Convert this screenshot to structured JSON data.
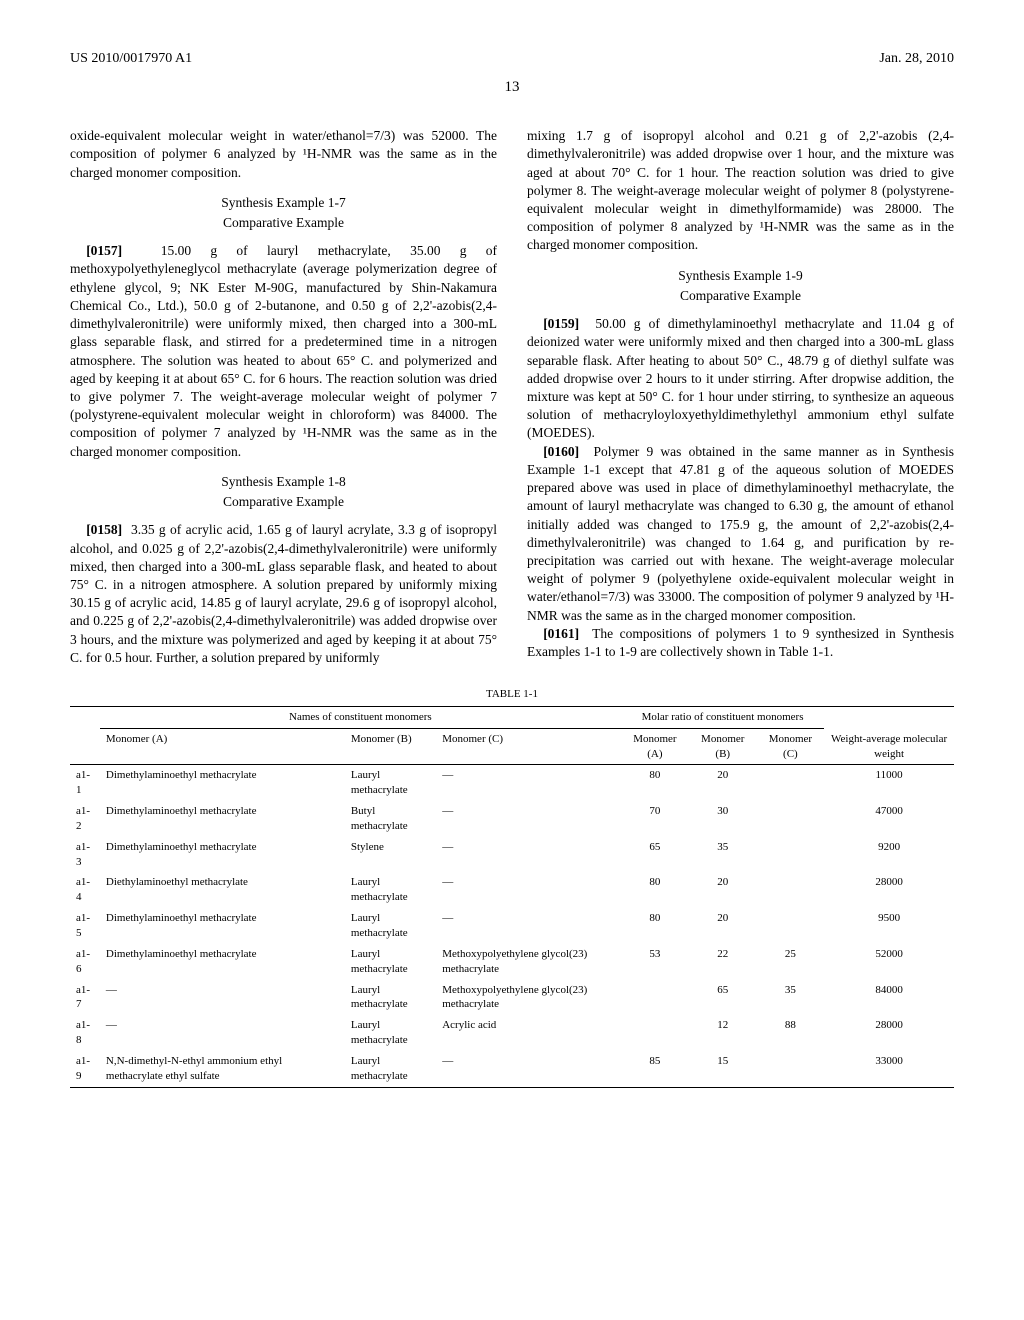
{
  "header": {
    "pub_number": "US 2010/0017970 A1",
    "pub_date": "Jan. 28, 2010",
    "page_number": "13"
  },
  "left_col": {
    "intro_frag": "oxide-equivalent molecular weight in water/ethanol=7/3) was 52000. The composition of polymer 6 analyzed by ¹H-NMR was the same as in the charged monomer composition.",
    "heading_1_7": "Synthesis Example 1-7",
    "sub_1_7": "Comparative Example",
    "para_0157_num": "[0157]",
    "para_0157": "15.00 g of lauryl methacrylate, 35.00 g of methoxypolyethyleneglycol methacrylate (average polymerization degree of ethylene glycol, 9; NK Ester M-90G, manufactured by Shin-Nakamura Chemical Co., Ltd.), 50.0 g of 2-butanone, and 0.50 g of 2,2'-azobis(2,4-dimethylvaleronitrile) were uniformly mixed, then charged into a 300-mL glass separable flask, and stirred for a predetermined time in a nitrogen atmosphere. The solution was heated to about 65° C. and polymerized and aged by keeping it at about 65° C. for 6 hours. The reaction solution was dried to give polymer 7. The weight-average molecular weight of polymer 7 (polystyrene-equivalent molecular weight in chloroform) was 84000. The composition of polymer 7 analyzed by ¹H-NMR was the same as in the charged monomer composition.",
    "heading_1_8": "Synthesis Example 1-8",
    "sub_1_8": "Comparative Example",
    "para_0158_num": "[0158]",
    "para_0158": "3.35 g of acrylic acid, 1.65 g of lauryl acrylate, 3.3 g of isopropyl alcohol, and 0.025 g of 2,2'-azobis(2,4-dimethylvaleronitrile) were uniformly mixed, then charged into a 300-mL glass separable flask, and heated to about 75° C. in a nitrogen atmosphere. A solution prepared by uniformly mixing 30.15 g of acrylic acid, 14.85 g of lauryl acrylate, 29.6 g of isopropyl alcohol, and 0.225 g of 2,2'-azobis(2,4-dimethylvaleronitrile) was added dropwise over 3 hours, and the mixture was polymerized and aged by keeping it at about 75° C. for 0.5 hour. Further, a solution prepared by uniformly"
  },
  "right_col": {
    "para_cont": "mixing 1.7 g of isopropyl alcohol and 0.21 g of 2,2'-azobis (2,4-dimethylvaleronitrile) was added dropwise over 1 hour, and the mixture was aged at about 70° C. for 1 hour. The reaction solution was dried to give polymer 8. The weight-average molecular weight of polymer 8 (polystyrene-equivalent molecular weight in dimethylformamide) was 28000. The composition of polymer 8 analyzed by ¹H-NMR was the same as in the charged monomer composition.",
    "heading_1_9": "Synthesis Example 1-9",
    "sub_1_9": "Comparative Example",
    "para_0159_num": "[0159]",
    "para_0159": "50.00 g of dimethylaminoethyl methacrylate and 11.04 g of deionized water were uniformly mixed and then charged into a 300-mL glass separable flask. After heating to about 50° C., 48.79 g of diethyl sulfate was added dropwise over 2 hours to it under stirring. After dropwise addition, the mixture was kept at 50° C. for 1 hour under stirring, to synthesize an aqueous solution of methacryloyloxyethyldimethylethyl ammonium ethyl sulfate (MOEDES).",
    "para_0160_num": "[0160]",
    "para_0160": "Polymer 9 was obtained in the same manner as in Synthesis Example 1-1 except that 47.81 g of the aqueous solution of MOEDES prepared above was used in place of dimethylaminoethyl methacrylate, the amount of lauryl methacrylate was changed to 6.30 g, the amount of ethanol initially added was changed to 175.9 g, the amount of 2,2'-azobis(2,4-dimethylvaleronitrile) was changed to 1.64 g, and purification by re-precipitation was carried out with hexane. The weight-average molecular weight of polymer 9 (polyethylene oxide-equivalent molecular weight in water/ethanol=7/3) was 33000. The composition of polymer 9 analyzed by ¹H-NMR was the same as in the charged monomer composition.",
    "para_0161_num": "[0161]",
    "para_0161": "The compositions of polymers 1 to 9 synthesized in Synthesis Examples 1-1 to 1-9 are collectively shown in Table 1-1."
  },
  "table": {
    "caption": "TABLE 1-1",
    "group_header_names": "Names of constituent monomers",
    "group_header_ratio": "Molar ratio of constituent monomers",
    "group_header_wt": "Weight-average molecular weight",
    "col_headers": [
      "",
      "Monomer (A)",
      "Monomer (B)",
      "Monomer (C)",
      "Monomer (A)",
      "Monomer (B)",
      "Monomer (C)",
      ""
    ],
    "rows": [
      {
        "id": "a1-1",
        "a": "Dimethylaminoethyl methacrylate",
        "b": "Lauryl methacrylate",
        "c": "—",
        "ra": "80",
        "rb": "20",
        "rc": "",
        "wt": "11000"
      },
      {
        "id": "a1-2",
        "a": "Dimethylaminoethyl methacrylate",
        "b": "Butyl methacrylate",
        "c": "—",
        "ra": "70",
        "rb": "30",
        "rc": "",
        "wt": "47000"
      },
      {
        "id": "a1-3",
        "a": "Dimethylaminoethyl methacrylate",
        "b": "Stylene",
        "c": "—",
        "ra": "65",
        "rb": "35",
        "rc": "",
        "wt": "9200"
      },
      {
        "id": "a1-4",
        "a": "Diethylaminoethyl methacrylate",
        "b": "Lauryl methacrylate",
        "c": "—",
        "ra": "80",
        "rb": "20",
        "rc": "",
        "wt": "28000"
      },
      {
        "id": "a1-5",
        "a": "Dimethylaminoethyl methacrylate",
        "b": "Lauryl methacrylate",
        "c": "—",
        "ra": "80",
        "rb": "20",
        "rc": "",
        "wt": "9500"
      },
      {
        "id": "a1-6",
        "a": "Dimethylaminoethyl methacrylate",
        "b": "Lauryl methacrylate",
        "c": "Methoxypolyethylene glycol(23) methacrylate",
        "ra": "53",
        "rb": "22",
        "rc": "25",
        "wt": "52000"
      },
      {
        "id": "a1-7",
        "a": "—",
        "b": "Lauryl methacrylate",
        "c": "Methoxypolyethylene glycol(23) methacrylate",
        "ra": "",
        "rb": "65",
        "rc": "35",
        "wt": "84000"
      },
      {
        "id": "a1-8",
        "a": "—",
        "b": "Lauryl methacrylate",
        "c": "Acrylic acid",
        "ra": "",
        "rb": "12",
        "rc": "88",
        "wt": "28000"
      },
      {
        "id": "a1-9",
        "a": "N,N-dimethyl-N-ethyl ammonium ethyl methacrylate ethyl sulfate",
        "b": "Lauryl methacrylate",
        "c": "—",
        "ra": "85",
        "rb": "15",
        "rc": "",
        "wt": "33000"
      }
    ]
  }
}
